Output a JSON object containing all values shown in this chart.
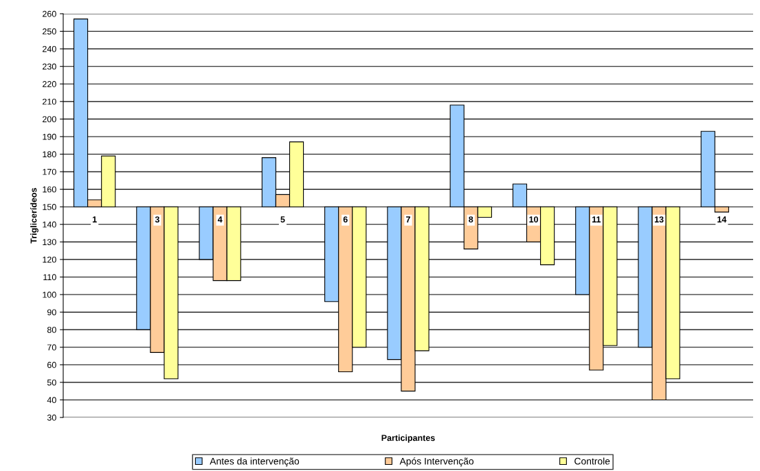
{
  "chart_data": {
    "type": "bar",
    "xlabel": "Participantes",
    "ylabel": "Triglicerídeos",
    "categories": [
      "1",
      "3",
      "4",
      "5",
      "6",
      "7",
      "8",
      "10",
      "11",
      "13",
      "14"
    ],
    "series": [
      {
        "name": "Antes da intervenção",
        "color": "#99ccff",
        "base": [
          150,
          150,
          150,
          150,
          150,
          150,
          150,
          150,
          150,
          150,
          150
        ],
        "values": [
          107,
          -70,
          -30,
          28,
          -54,
          -87,
          58,
          13,
          -50,
          -80,
          43
        ]
      },
      {
        "name": "Após Intervenção",
        "color": "#ffcc99",
        "base": [
          150,
          150,
          150,
          150,
          150,
          150,
          150,
          150,
          150,
          150,
          150
        ],
        "values": [
          4,
          -83,
          -42,
          7,
          -94,
          -105,
          -24,
          -20,
          -93,
          -110,
          -3
        ]
      },
      {
        "name": "Controle",
        "color": "#ffff99",
        "base": [
          150,
          150,
          150,
          150,
          150,
          150,
          150,
          150,
          150,
          150,
          null
        ],
        "values": [
          29,
          -98,
          -42,
          37,
          -80,
          -82,
          -6,
          -33,
          -79,
          -98,
          null
        ]
      }
    ],
    "ylim": [
      30,
      260
    ],
    "yticks": [
      30,
      40,
      50,
      60,
      70,
      80,
      90,
      100,
      110,
      120,
      130,
      140,
      150,
      160,
      170,
      180,
      190,
      200,
      210,
      220,
      230,
      240,
      250,
      260
    ],
    "grid": "y",
    "legend": "bottom"
  }
}
